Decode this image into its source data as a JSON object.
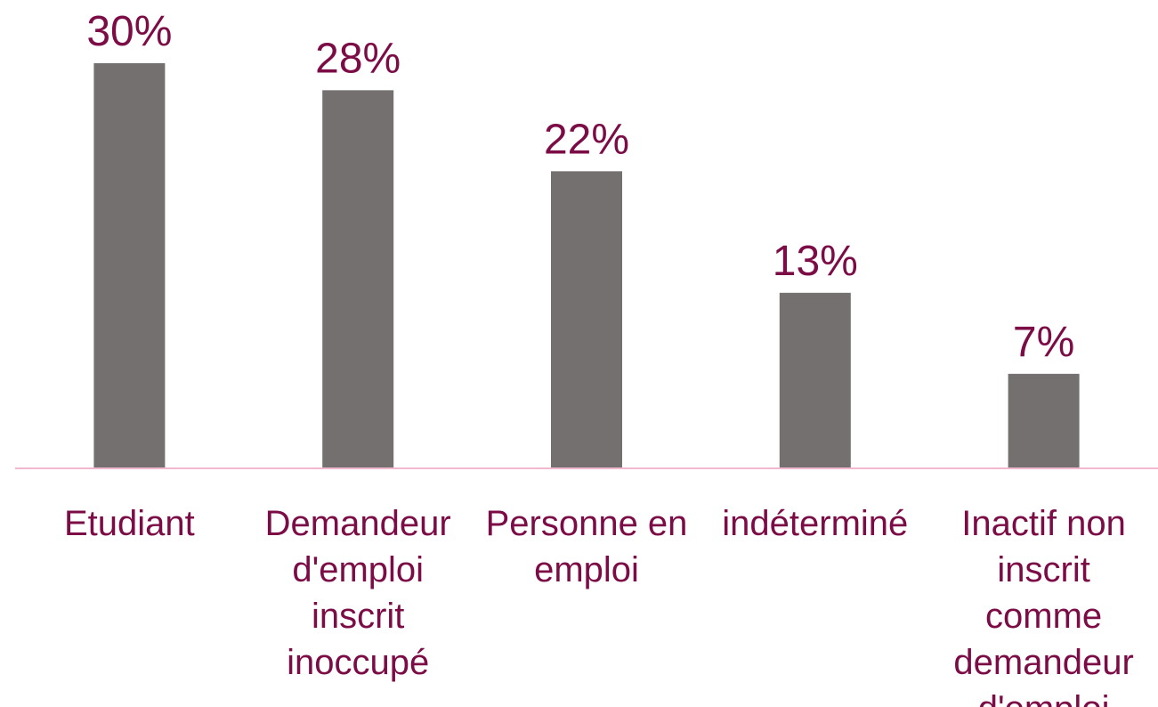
{
  "chart_data": {
    "type": "bar",
    "categories": [
      "Etudiant",
      "Demandeur d'emploi inscrit inoccupé",
      "Personne en emploi",
      "indéterminé",
      "Inactif non inscrit comme demandeur d'emploi"
    ],
    "values": [
      30,
      28,
      22,
      13,
      7
    ],
    "value_labels": [
      "30%",
      "28%",
      "22%",
      "13%",
      "7%"
    ],
    "color": "#757070"
  }
}
